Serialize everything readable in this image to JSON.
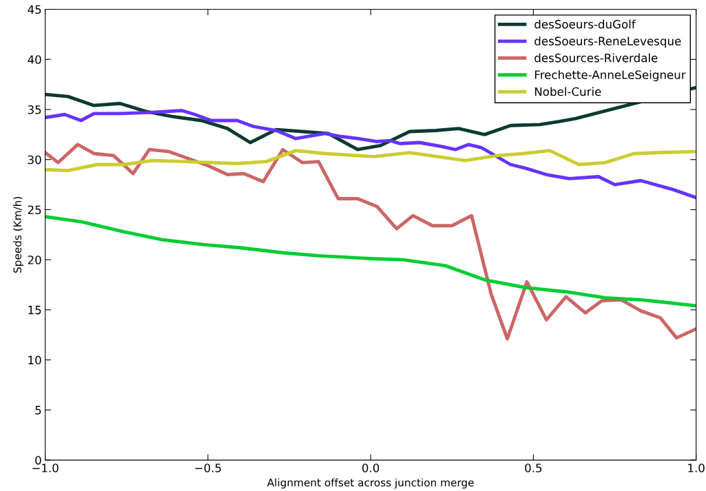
{
  "chart_data": {
    "type": "line",
    "xlabel": "Alignment offset across junction merge",
    "ylabel": "Speeds (Km/h)",
    "xlim": [
      -1,
      1
    ],
    "xticks": [
      {
        "value": -1,
        "label": "−1.0"
      },
      {
        "value": -0.5,
        "label": "−0.5"
      },
      {
        "value": 0,
        "label": "0.0"
      },
      {
        "value": 0.5,
        "label": "0.5"
      },
      {
        "value": 1,
        "label": "1.0"
      }
    ],
    "ylim": [
      0,
      45
    ],
    "yticks": [
      0,
      5,
      10,
      15,
      20,
      25,
      30,
      35,
      40,
      45
    ],
    "grid": false,
    "legend": "top right",
    "marker": "none",
    "line_style": "solid",
    "series": [
      {
        "name": "desSoeurs-duGolf",
        "color": "#0b3a33",
        "x": [
          -1.0,
          -0.93,
          -0.85,
          -0.77,
          -0.69,
          -0.61,
          -0.52,
          -0.44,
          -0.37,
          -0.29,
          -0.21,
          -0.13,
          -0.04,
          0.03,
          0.12,
          0.2,
          0.27,
          0.35,
          0.43,
          0.52,
          0.58,
          0.63,
          1.0
        ],
        "values": [
          36.5,
          36.3,
          35.4,
          35.6,
          34.8,
          34.3,
          33.9,
          33.1,
          31.7,
          33.0,
          32.8,
          32.6,
          31.0,
          31.4,
          32.8,
          32.9,
          33.1,
          32.5,
          33.4,
          33.5,
          33.8,
          34.1,
          37.2
        ]
      },
      {
        "name": "desSoeurs-ReneLevesque",
        "color": "#6633ff",
        "x": [
          -1.0,
          -0.94,
          -0.89,
          -0.85,
          -0.77,
          -0.68,
          -0.58,
          -0.54,
          -0.49,
          -0.41,
          -0.36,
          -0.29,
          -0.23,
          -0.14,
          -0.09,
          -0.04,
          0.02,
          0.06,
          0.09,
          0.15,
          0.22,
          0.26,
          0.3,
          0.34,
          0.43,
          0.48,
          0.54,
          0.61,
          0.7,
          0.75,
          0.83,
          0.93,
          1.0
        ],
        "values": [
          34.2,
          34.5,
          33.9,
          34.6,
          34.6,
          34.7,
          34.9,
          34.5,
          33.9,
          33.9,
          33.3,
          32.9,
          32.1,
          32.6,
          32.3,
          32.1,
          31.8,
          31.9,
          31.6,
          31.7,
          31.3,
          31.0,
          31.5,
          31.2,
          29.5,
          29.1,
          28.5,
          28.1,
          28.3,
          27.5,
          27.9,
          27.0,
          26.2
        ]
      },
      {
        "name": "desSources-Riverdale",
        "color": "#cc6666",
        "x": [
          -1.0,
          -0.96,
          -0.9,
          -0.85,
          -0.79,
          -0.73,
          -0.68,
          -0.62,
          -0.56,
          -0.5,
          -0.44,
          -0.39,
          -0.33,
          -0.27,
          -0.21,
          -0.16,
          -0.1,
          -0.04,
          0.02,
          0.08,
          0.13,
          0.19,
          0.25,
          0.31,
          0.37,
          0.42,
          0.48,
          0.54,
          0.6,
          0.66,
          0.71,
          0.77,
          0.83,
          0.89,
          0.94,
          1.0
        ],
        "values": [
          30.7,
          29.7,
          31.5,
          30.6,
          30.4,
          28.6,
          31.0,
          30.8,
          30.1,
          29.4,
          28.5,
          28.6,
          27.8,
          31.0,
          29.7,
          29.8,
          26.1,
          26.1,
          25.3,
          23.1,
          24.4,
          23.4,
          23.4,
          24.4,
          16.6,
          12.1,
          17.8,
          14.0,
          16.3,
          14.7,
          15.9,
          16.0,
          14.9,
          14.2,
          12.2,
          13.1
        ]
      },
      {
        "name": "Frechette-AnneLeSeigneur",
        "color": "#00cc33",
        "x": [
          -1.0,
          -0.89,
          -0.76,
          -0.64,
          -0.51,
          -0.4,
          -0.27,
          -0.16,
          0.01,
          0.1,
          0.23,
          0.35,
          0.48,
          0.6,
          0.72,
          0.83,
          0.89,
          1.0
        ],
        "values": [
          24.3,
          23.8,
          22.8,
          22.0,
          21.5,
          21.2,
          20.7,
          20.4,
          20.1,
          20.0,
          19.4,
          18.0,
          17.2,
          16.8,
          16.2,
          16.0,
          15.8,
          15.4
        ]
      },
      {
        "name": "Nobel-Curie",
        "color": "#cccc33",
        "x": [
          -1.0,
          -0.93,
          -0.84,
          -0.76,
          -0.67,
          -0.57,
          -0.41,
          -0.32,
          -0.23,
          -0.14,
          0.01,
          0.12,
          0.29,
          0.39,
          0.47,
          0.55,
          0.64,
          0.72,
          0.81,
          0.89,
          1.0
        ],
        "values": [
          29.0,
          28.9,
          29.5,
          29.5,
          29.9,
          29.8,
          29.6,
          29.8,
          30.9,
          30.6,
          30.3,
          30.7,
          29.9,
          30.4,
          30.6,
          30.9,
          29.5,
          29.7,
          30.6,
          30.7,
          30.8
        ]
      }
    ]
  }
}
